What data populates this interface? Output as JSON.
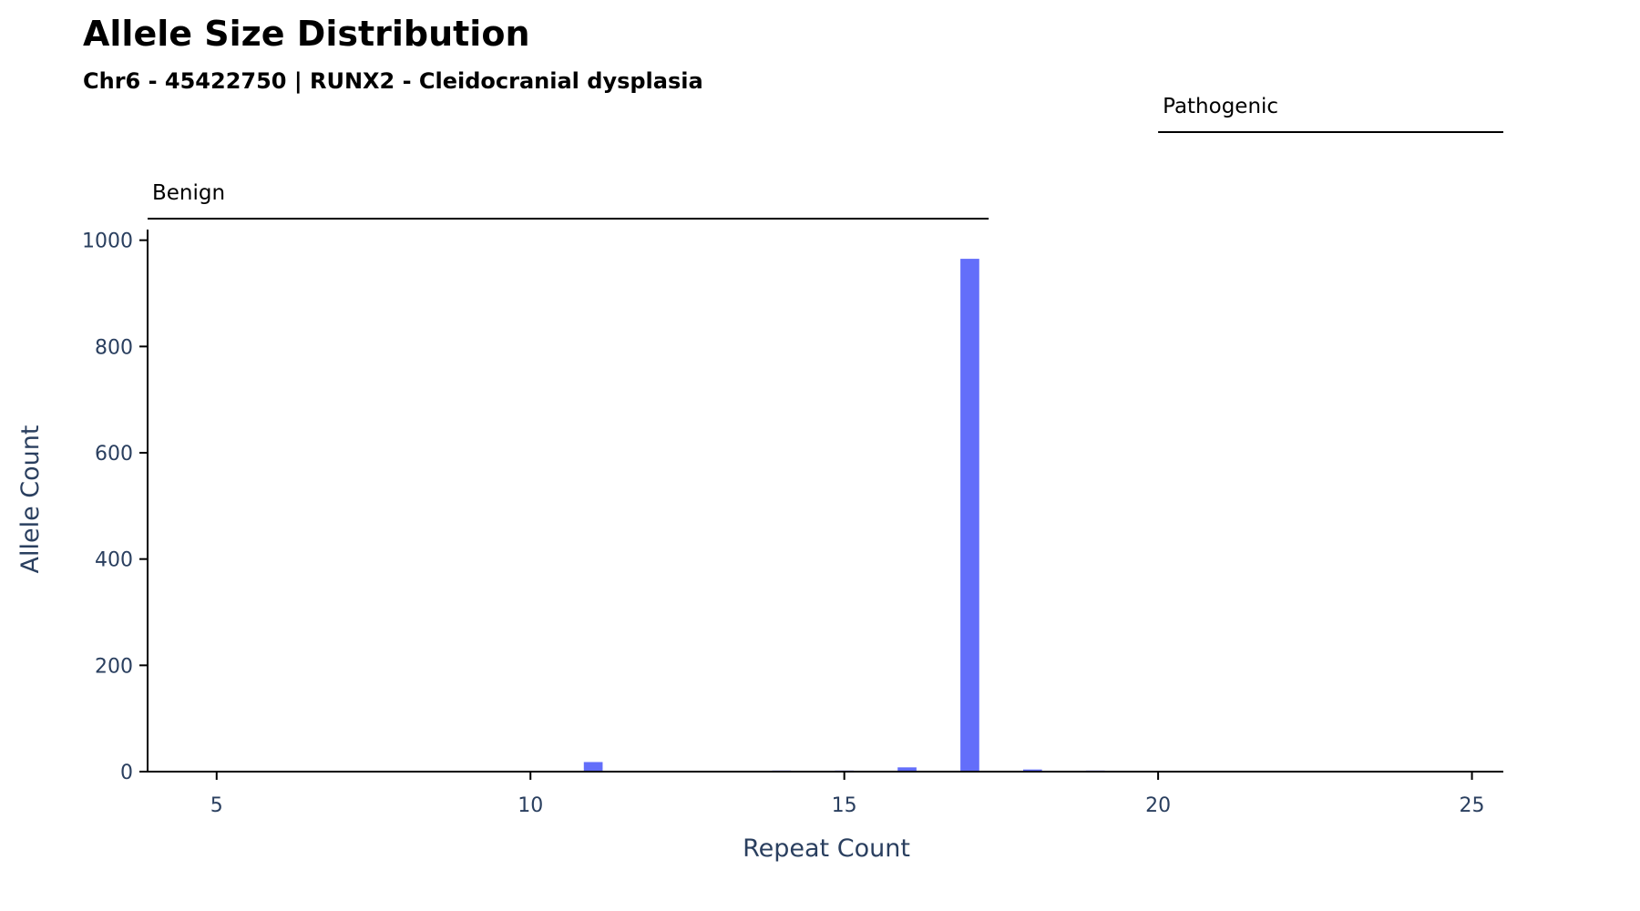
{
  "chart_data": {
    "type": "bar",
    "title": "Allele Size Distribution",
    "subtitle": "Chr6 - 45422750 | RUNX2 - Cleidocranial dysplasia",
    "xlabel": "Repeat Count",
    "ylabel": "Allele Count",
    "xlim": [
      3.9,
      25.5
    ],
    "ylim": [
      0,
      1020
    ],
    "xticks": [
      5,
      10,
      15,
      20,
      25
    ],
    "yticks": [
      0,
      200,
      400,
      600,
      800,
      1000
    ],
    "bar_color": "#636efa",
    "grid": false,
    "x": [
      11,
      14,
      15,
      16,
      17,
      18,
      19,
      23
    ],
    "values": [
      18,
      2,
      2,
      8,
      965,
      4,
      2,
      1
    ],
    "regions": [
      {
        "label": "Benign",
        "x_start": 3.9,
        "x_end": 17.3
      },
      {
        "label": "Pathogenic",
        "x_start": 20,
        "x_end": 25.5
      }
    ]
  }
}
